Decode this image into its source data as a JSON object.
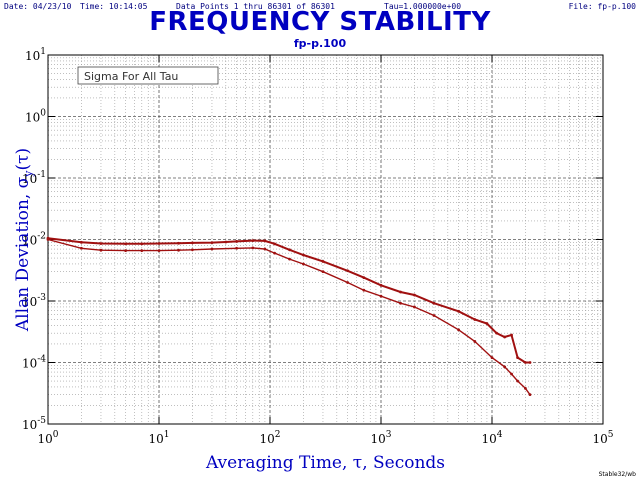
{
  "header": {
    "date": "Date: 04/23/10",
    "time": "Time: 10:14:05",
    "points": "Data Points 1 thru 86301 of 86301",
    "tau": "Tau=1.000000e+00",
    "file": "File: fp-p.100"
  },
  "footer": "Stable32/wb",
  "colors": {
    "title": "#0000c0",
    "series": "#a01010",
    "grid": "#999999",
    "axis": "#000000"
  },
  "chart_data": {
    "type": "line",
    "title": "FREQUENCY STABILITY",
    "subtitle": "fp-p.100",
    "xlabel": "Averaging Time, τ, Seconds",
    "ylabel": "Allan Deviation, σ",
    "ylabel_sub": "y",
    "ylabel_tau": "(τ)",
    "legend_box": "Sigma For All Tau",
    "x_scale": "log",
    "y_scale": "log",
    "xlim": [
      1,
      100000
    ],
    "ylim": [
      1e-05,
      10
    ],
    "x_ticks": [
      "10^0",
      "10^1",
      "10^2",
      "10^3",
      "10^4",
      "10^5"
    ],
    "y_ticks": [
      "10^-5",
      "10^-4",
      "10^-3",
      "10^-2",
      "10^-1",
      "10^0",
      "10^1"
    ],
    "grid": true,
    "series": [
      {
        "values": [
          [
            1,
            0.0105
          ],
          [
            2,
            0.009
          ],
          [
            3,
            0.0086
          ],
          [
            5,
            0.0085
          ],
          [
            7,
            0.0085
          ],
          [
            10,
            0.0086
          ],
          [
            15,
            0.0087
          ],
          [
            20,
            0.0088
          ],
          [
            30,
            0.0089
          ],
          [
            40,
            0.0091
          ],
          [
            50,
            0.0093
          ],
          [
            70,
            0.0096
          ],
          [
            90,
            0.0095
          ],
          [
            110,
            0.0085
          ],
          [
            150,
            0.0068
          ],
          [
            200,
            0.0056
          ],
          [
            300,
            0.0044
          ],
          [
            500,
            0.0031
          ],
          [
            700,
            0.0024
          ],
          [
            1000,
            0.0018
          ],
          [
            1500,
            0.0014
          ],
          [
            2000,
            0.00125
          ],
          [
            3000,
            0.00092
          ],
          [
            5000,
            0.00068
          ],
          [
            7000,
            0.0005
          ],
          [
            9000,
            0.00043
          ],
          [
            11000,
            0.0003
          ],
          [
            13000,
            0.00026
          ],
          [
            15000,
            0.00028
          ],
          [
            17000,
            0.00012
          ],
          [
            20000,
            0.0001
          ],
          [
            22000,
            0.0001
          ]
        ]
      },
      {
        "values": [
          [
            1,
            0.01
          ],
          [
            2,
            0.0072
          ],
          [
            3,
            0.0067
          ],
          [
            5,
            0.0066
          ],
          [
            7,
            0.0066
          ],
          [
            10,
            0.0066
          ],
          [
            15,
            0.0067
          ],
          [
            20,
            0.0068
          ],
          [
            30,
            0.007
          ],
          [
            50,
            0.0072
          ],
          [
            70,
            0.0073
          ],
          [
            90,
            0.007
          ],
          [
            110,
            0.006
          ],
          [
            150,
            0.0048
          ],
          [
            200,
            0.004
          ],
          [
            300,
            0.003
          ],
          [
            500,
            0.002
          ],
          [
            700,
            0.0015
          ],
          [
            1000,
            0.0012
          ],
          [
            1500,
            0.00092
          ],
          [
            2000,
            0.0008
          ],
          [
            3000,
            0.00058
          ],
          [
            5000,
            0.00034
          ],
          [
            7000,
            0.00022
          ],
          [
            10000,
            0.00012
          ],
          [
            13000,
            8.5e-05
          ],
          [
            15000,
            6.5e-05
          ],
          [
            17000,
            5e-05
          ],
          [
            20000,
            3.8e-05
          ],
          [
            22000,
            3e-05
          ]
        ]
      }
    ]
  }
}
